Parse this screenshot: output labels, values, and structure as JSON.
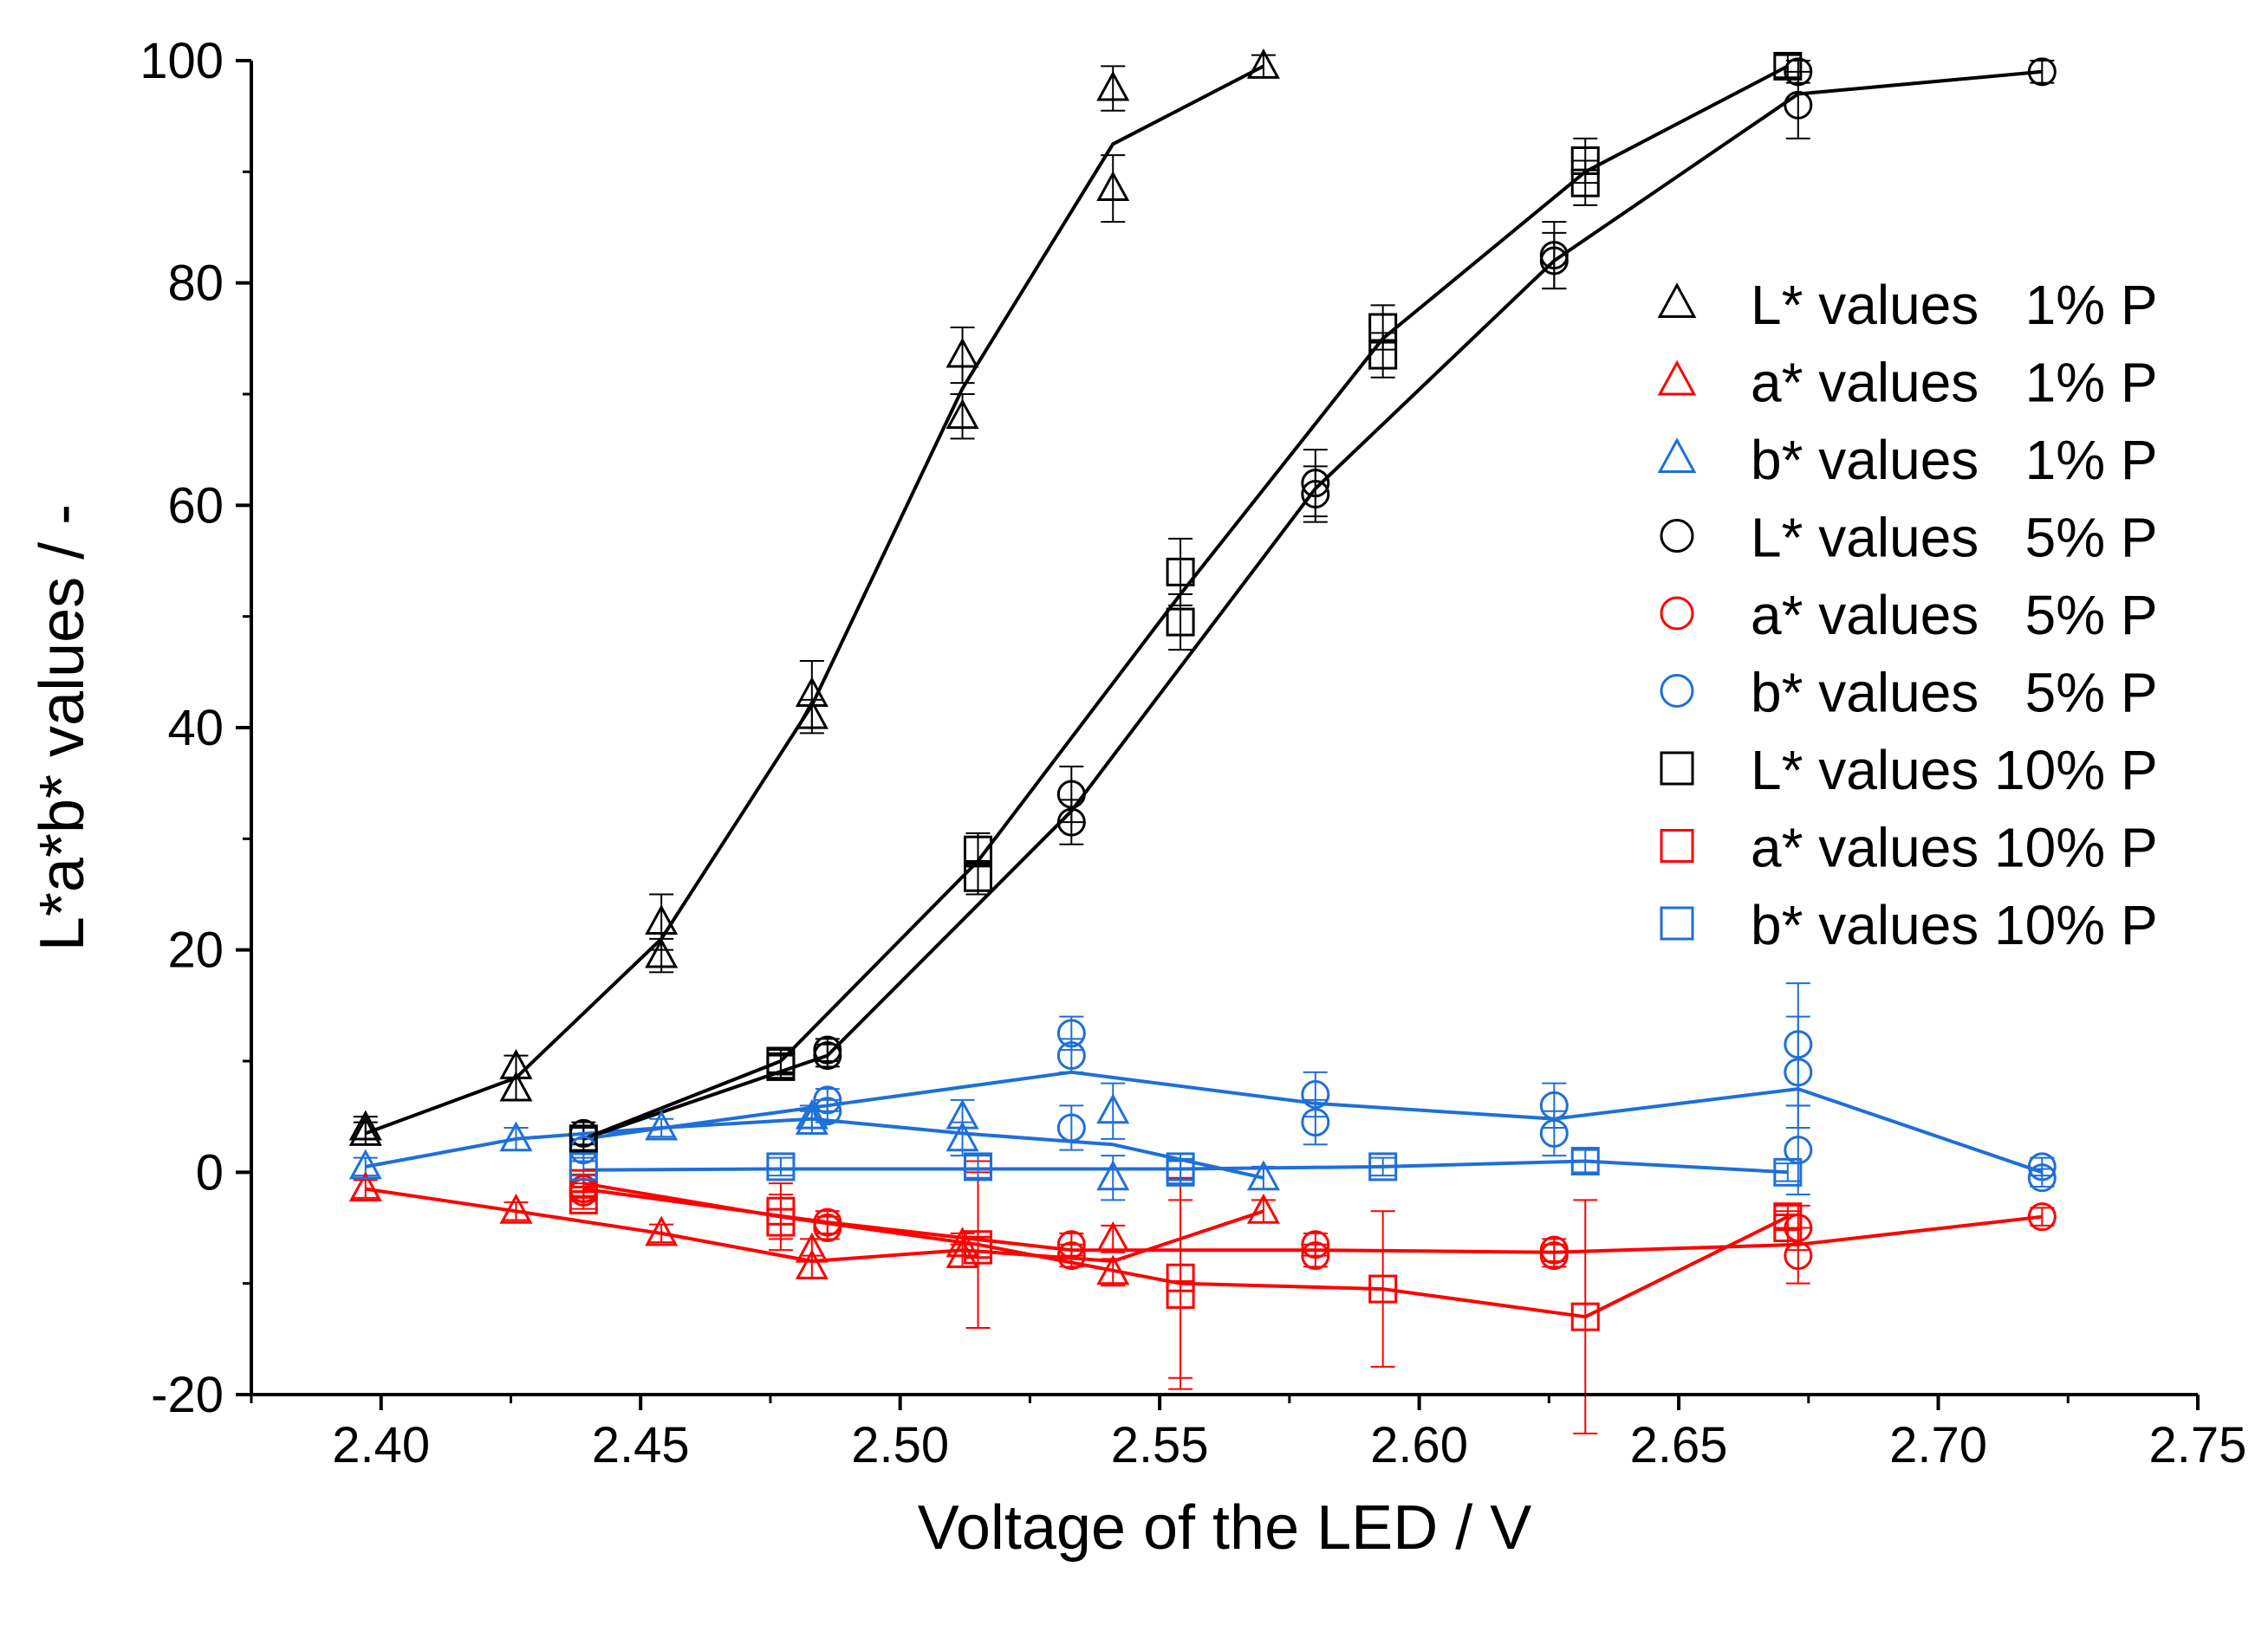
{
  "chart_data": {
    "type": "scatter",
    "title": "",
    "xlabel": "Voltage of the LED / V",
    "ylabel": "L*a*b* values / -",
    "xlim": [
      2.375,
      2.75
    ],
    "ylim": [
      -20,
      100
    ],
    "xticks": [
      2.4,
      2.45,
      2.5,
      2.55,
      2.6,
      2.65,
      2.7,
      2.75
    ],
    "xtick_labels": [
      "2.40",
      "2.45",
      "2.50",
      "2.55",
      "2.60",
      "2.65",
      "2.70",
      "2.75"
    ],
    "yticks": [
      -20,
      0,
      20,
      40,
      60,
      80,
      100
    ],
    "ytick_labels": [
      "-20",
      "0",
      "20",
      "40",
      "60",
      "80",
      "100"
    ],
    "grid": false,
    "legend_position": "right",
    "series": [
      {
        "name": "L* values   1% P",
        "marker": "triangle",
        "color": "#000000",
        "points": [
          [
            2.397,
            4
          ],
          [
            2.397,
            3.5
          ],
          [
            2.426,
            9.5
          ],
          [
            2.426,
            7.5
          ],
          [
            2.454,
            22.5
          ],
          [
            2.454,
            19.5
          ],
          [
            2.483,
            43
          ],
          [
            2.483,
            41
          ],
          [
            2.512,
            73.5
          ],
          [
            2.512,
            68
          ],
          [
            2.541,
            97.5
          ],
          [
            2.541,
            88.5
          ],
          [
            2.57,
            99.5
          ]
        ],
        "errors": [
          1,
          1,
          1,
          1,
          2.5,
          1.5,
          3,
          1.5,
          2.5,
          2,
          2,
          3,
          1
        ],
        "line": [
          [
            2.397,
            3.5
          ],
          [
            2.426,
            8.5
          ],
          [
            2.454,
            21
          ],
          [
            2.483,
            42
          ],
          [
            2.512,
            70.5
          ],
          [
            2.541,
            92.5
          ],
          [
            2.57,
            99.5
          ]
        ]
      },
      {
        "name": "a* values   1% P",
        "marker": "triangle",
        "color": "#ff0000",
        "points": [
          [
            2.397,
            -1.5
          ],
          [
            2.426,
            -3.5
          ],
          [
            2.454,
            -5.5
          ],
          [
            2.483,
            -7
          ],
          [
            2.483,
            -8.5
          ],
          [
            2.512,
            -6.5
          ],
          [
            2.512,
            -7.5
          ],
          [
            2.541,
            -6
          ],
          [
            2.541,
            -9
          ],
          [
            2.57,
            -3.5
          ]
        ],
        "errors": [
          0.8,
          0.8,
          0.8,
          1,
          1,
          1,
          1,
          1.2,
          1.2,
          1
        ],
        "line": [
          [
            2.397,
            -1.5
          ],
          [
            2.426,
            -3.5
          ],
          [
            2.454,
            -5.5
          ],
          [
            2.483,
            -8
          ],
          [
            2.512,
            -7
          ],
          [
            2.541,
            -8
          ],
          [
            2.57,
            -3.5
          ]
        ]
      },
      {
        "name": "b* values   1% P",
        "marker": "triangle",
        "color": "#1e6fd9",
        "points": [
          [
            2.397,
            0.5
          ],
          [
            2.426,
            3
          ],
          [
            2.454,
            4
          ],
          [
            2.483,
            5
          ],
          [
            2.483,
            4.5
          ],
          [
            2.512,
            5
          ],
          [
            2.512,
            3
          ],
          [
            2.541,
            5.5
          ],
          [
            2.541,
            -0.5
          ],
          [
            2.57,
            -0.5
          ]
        ],
        "errors": [
          0.8,
          1,
          0.8,
          1,
          1,
          1.5,
          1.5,
          2.5,
          2,
          1
        ],
        "line": [
          [
            2.397,
            0.5
          ],
          [
            2.426,
            3
          ],
          [
            2.454,
            4
          ],
          [
            2.483,
            4.8
          ],
          [
            2.512,
            3.5
          ],
          [
            2.541,
            2.5
          ],
          [
            2.57,
            -0.5
          ]
        ]
      },
      {
        "name": "L* values   5% P",
        "marker": "circle",
        "color": "#000000",
        "points": [
          [
            2.439,
            3.5
          ],
          [
            2.486,
            11
          ],
          [
            2.486,
            10.5
          ],
          [
            2.533,
            34
          ],
          [
            2.533,
            31.5
          ],
          [
            2.58,
            62
          ],
          [
            2.58,
            61
          ],
          [
            2.626,
            82.5
          ],
          [
            2.626,
            82
          ],
          [
            2.673,
            99
          ],
          [
            2.673,
            96
          ],
          [
            2.72,
            99
          ]
        ],
        "errors": [
          1,
          1,
          1,
          2.5,
          2,
          3,
          2.5,
          3,
          2.5,
          1,
          3,
          1
        ],
        "line": [
          [
            2.439,
            3
          ],
          [
            2.486,
            10.5
          ],
          [
            2.533,
            32.5
          ],
          [
            2.58,
            61.5
          ],
          [
            2.626,
            82
          ],
          [
            2.673,
            97
          ],
          [
            2.72,
            99
          ]
        ]
      },
      {
        "name": "a* values   5% P",
        "marker": "circle",
        "color": "#ff0000",
        "points": [
          [
            2.439,
            -1.5
          ],
          [
            2.439,
            -1.8
          ],
          [
            2.486,
            -4.5
          ],
          [
            2.486,
            -5
          ],
          [
            2.533,
            -6.5
          ],
          [
            2.533,
            -7.5
          ],
          [
            2.58,
            -6.5
          ],
          [
            2.58,
            -7.5
          ],
          [
            2.626,
            -7
          ],
          [
            2.626,
            -7.5
          ],
          [
            2.673,
            -5
          ],
          [
            2.673,
            -7.5
          ],
          [
            2.72,
            -4
          ]
        ],
        "errors": [
          0.8,
          0.8,
          1,
          1,
          1,
          1,
          1,
          1,
          1,
          1,
          2,
          2.5,
          0.8
        ],
        "line": [
          [
            2.439,
            -1.5
          ],
          [
            2.486,
            -4.5
          ],
          [
            2.533,
            -7
          ],
          [
            2.58,
            -7
          ],
          [
            2.626,
            -7.2
          ],
          [
            2.673,
            -6.5
          ],
          [
            2.72,
            -4
          ]
        ]
      },
      {
        "name": "b* values   5% P",
        "marker": "circle",
        "color": "#1e6fd9",
        "points": [
          [
            2.439,
            2
          ],
          [
            2.486,
            6.5
          ],
          [
            2.486,
            5.5
          ],
          [
            2.533,
            12.5
          ],
          [
            2.533,
            10.5
          ],
          [
            2.533,
            4
          ],
          [
            2.58,
            7
          ],
          [
            2.58,
            4.5
          ],
          [
            2.626,
            6
          ],
          [
            2.626,
            3.5
          ],
          [
            2.673,
            11.5
          ],
          [
            2.673,
            9
          ],
          [
            2.673,
            2
          ],
          [
            2.72,
            0.5
          ],
          [
            2.72,
            -0.5
          ]
        ],
        "errors": [
          1,
          1,
          1,
          1.5,
          1.5,
          2,
          2,
          2,
          2,
          2,
          5.5,
          5,
          4,
          0.8,
          0.8
        ],
        "line": [
          [
            2.439,
            3
          ],
          [
            2.486,
            6
          ],
          [
            2.533,
            9
          ],
          [
            2.58,
            6.2
          ],
          [
            2.626,
            4.8
          ],
          [
            2.673,
            7.5
          ],
          [
            2.72,
            0
          ]
        ]
      },
      {
        "name": "L* values 10% P",
        "marker": "square",
        "color": "#000000",
        "points": [
          [
            2.439,
            3
          ],
          [
            2.477,
            10
          ],
          [
            2.477,
            9.5
          ],
          [
            2.515,
            29
          ],
          [
            2.515,
            26.5
          ],
          [
            2.554,
            54
          ],
          [
            2.554,
            49.5
          ],
          [
            2.593,
            76
          ],
          [
            2.593,
            73.5
          ],
          [
            2.632,
            91
          ],
          [
            2.632,
            89
          ],
          [
            2.671,
            99.5
          ]
        ],
        "errors": [
          1,
          1,
          1,
          1.5,
          1.5,
          3,
          2.5,
          2,
          2,
          2,
          2,
          1
        ],
        "line": [
          [
            2.439,
            3
          ],
          [
            2.477,
            10
          ],
          [
            2.515,
            28
          ],
          [
            2.554,
            52
          ],
          [
            2.593,
            75
          ],
          [
            2.632,
            90
          ],
          [
            2.671,
            99.5
          ]
        ]
      },
      {
        "name": "a* values 10% P",
        "marker": "square",
        "color": "#ff0000",
        "points": [
          [
            2.439,
            -1
          ],
          [
            2.439,
            -2.5
          ],
          [
            2.477,
            -3.5
          ],
          [
            2.477,
            -4.5
          ],
          [
            2.515,
            -6.5
          ],
          [
            2.515,
            -7
          ],
          [
            2.554,
            -9.5
          ],
          [
            2.554,
            -11
          ],
          [
            2.593,
            -10.5
          ],
          [
            2.632,
            -13
          ],
          [
            2.671,
            -4
          ],
          [
            2.671,
            -5
          ]
        ],
        "errors": [
          0.8,
          0.8,
          2.5,
          2.5,
          7.5,
          7,
          9,
          8.5,
          7,
          10.5,
          1,
          1.5
        ],
        "line": [
          [
            2.439,
            -1
          ],
          [
            2.477,
            -4
          ],
          [
            2.515,
            -6.5
          ],
          [
            2.554,
            -10
          ],
          [
            2.593,
            -10.5
          ],
          [
            2.632,
            -13
          ],
          [
            2.671,
            -4
          ]
        ]
      },
      {
        "name": "b* values 10% P",
        "marker": "square",
        "color": "#1e6fd9",
        "points": [
          [
            2.439,
            0.5
          ],
          [
            2.477,
            0.5
          ],
          [
            2.515,
            0.5
          ],
          [
            2.554,
            0.5
          ],
          [
            2.554,
            0
          ],
          [
            2.593,
            0.5
          ],
          [
            2.632,
            1
          ],
          [
            2.671,
            0
          ]
        ],
        "errors": [
          0.8,
          0.8,
          1,
          1.2,
          1,
          0.8,
          1,
          0.8
        ],
        "line": [
          [
            2.439,
            0.2
          ],
          [
            2.477,
            0.3
          ],
          [
            2.515,
            0.3
          ],
          [
            2.554,
            0.3
          ],
          [
            2.593,
            0.5
          ],
          [
            2.632,
            1
          ],
          [
            2.671,
            0
          ]
        ]
      }
    ]
  }
}
